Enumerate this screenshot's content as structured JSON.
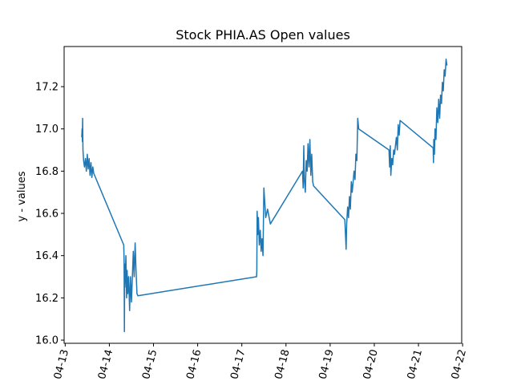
{
  "chart_data": {
    "type": "line",
    "title": "Stock PHIA.AS Open values",
    "xlabel": "",
    "ylabel": "y - values",
    "xlim": [
      "2021-04-12T23:25",
      "2021-04-21T23:30"
    ],
    "ylim": [
      15.985,
      17.39
    ],
    "grid": false,
    "legend": "none",
    "color": "#1f77b4",
    "x_ticks": [
      "04-13",
      "04-14",
      "04-15",
      "04-16",
      "04-17",
      "04-18",
      "04-19",
      "04-20",
      "04-21",
      "04-22"
    ],
    "y_ticks": [
      "16.0",
      "16.2",
      "16.4",
      "16.6",
      "16.8",
      "17.0",
      "17.2"
    ],
    "series": [
      {
        "values": [
          [
            "2021-04-13T09:00",
            16.96
          ],
          [
            "2021-04-13T09:10",
            17.0
          ],
          [
            "2021-04-13T09:20",
            16.94
          ],
          [
            "2021-04-13T09:30",
            17.05
          ],
          [
            "2021-04-13T09:40",
            16.9
          ],
          [
            "2021-04-13T10:00",
            16.85
          ],
          [
            "2021-04-13T10:30",
            16.82
          ],
          [
            "2021-04-13T11:00",
            16.86
          ],
          [
            "2021-04-13T11:30",
            16.8
          ],
          [
            "2021-04-13T12:00",
            16.88
          ],
          [
            "2021-04-13T12:30",
            16.81
          ],
          [
            "2021-04-13T13:00",
            16.86
          ],
          [
            "2021-04-13T13:30",
            16.78
          ],
          [
            "2021-04-13T14:00",
            16.84
          ],
          [
            "2021-04-13T14:30",
            16.77
          ],
          [
            "2021-04-13T15:00",
            16.82
          ],
          [
            "2021-04-13T15:30",
            16.79
          ],
          [
            "2021-04-14T07:50",
            16.45
          ],
          [
            "2021-04-14T08:00",
            16.38
          ],
          [
            "2021-04-14T08:10",
            16.04
          ],
          [
            "2021-04-14T08:20",
            16.36
          ],
          [
            "2021-04-14T08:30",
            16.25
          ],
          [
            "2021-04-14T09:00",
            16.4
          ],
          [
            "2021-04-14T09:20",
            16.2
          ],
          [
            "2021-04-14T09:40",
            16.33
          ],
          [
            "2021-04-14T10:00",
            16.22
          ],
          [
            "2021-04-14T10:30",
            16.3
          ],
          [
            "2021-04-14T11:00",
            16.14
          ],
          [
            "2021-04-14T11:30",
            16.3
          ],
          [
            "2021-04-14T12:00",
            16.18
          ],
          [
            "2021-04-14T13:00",
            16.42
          ],
          [
            "2021-04-14T13:30",
            16.3
          ],
          [
            "2021-04-14T14:00",
            16.46
          ],
          [
            "2021-04-14T14:30",
            16.33
          ],
          [
            "2021-04-14T15:00",
            16.22
          ],
          [
            "2021-04-14T15:30",
            16.21
          ],
          [
            "2021-04-17T08:00",
            16.3
          ],
          [
            "2021-04-17T08:10",
            16.33
          ],
          [
            "2021-04-17T08:20",
            16.61
          ],
          [
            "2021-04-17T08:40",
            16.5
          ],
          [
            "2021-04-17T09:00",
            16.58
          ],
          [
            "2021-04-17T09:30",
            16.45
          ],
          [
            "2021-04-17T10:00",
            16.52
          ],
          [
            "2021-04-17T10:30",
            16.42
          ],
          [
            "2021-04-17T11:00",
            16.48
          ],
          [
            "2021-04-17T11:30",
            16.4
          ],
          [
            "2021-04-17T12:00",
            16.72
          ],
          [
            "2021-04-17T13:00",
            16.58
          ],
          [
            "2021-04-17T14:00",
            16.62
          ],
          [
            "2021-04-17T15:30",
            16.55
          ],
          [
            "2021-04-18T09:00",
            16.8
          ],
          [
            "2021-04-18T09:20",
            16.72
          ],
          [
            "2021-04-18T09:40",
            16.92
          ],
          [
            "2021-04-18T10:00",
            16.76
          ],
          [
            "2021-04-18T10:30",
            16.7
          ],
          [
            "2021-04-18T11:00",
            16.85
          ],
          [
            "2021-04-18T11:30",
            16.8
          ],
          [
            "2021-04-18T12:00",
            16.93
          ],
          [
            "2021-04-18T12:30",
            16.82
          ],
          [
            "2021-04-18T13:00",
            16.95
          ],
          [
            "2021-04-18T13:30",
            16.78
          ],
          [
            "2021-04-18T14:00",
            16.88
          ],
          [
            "2021-04-18T14:30",
            16.75
          ],
          [
            "2021-04-18T15:00",
            16.73
          ],
          [
            "2021-04-19T08:00",
            16.57
          ],
          [
            "2021-04-19T08:20",
            16.5
          ],
          [
            "2021-04-19T08:40",
            16.43
          ],
          [
            "2021-04-19T09:00",
            16.55
          ],
          [
            "2021-04-19T09:30",
            16.63
          ],
          [
            "2021-04-19T10:00",
            16.58
          ],
          [
            "2021-04-19T10:30",
            16.68
          ],
          [
            "2021-04-19T11:00",
            16.62
          ],
          [
            "2021-04-19T11:30",
            16.75
          ],
          [
            "2021-04-19T12:00",
            16.7
          ],
          [
            "2021-04-19T13:00",
            16.8
          ],
          [
            "2021-04-19T13:30",
            16.76
          ],
          [
            "2021-04-19T14:00",
            16.88
          ],
          [
            "2021-04-19T14:30",
            16.85
          ],
          [
            "2021-04-19T15:00",
            17.05
          ],
          [
            "2021-04-19T15:30",
            17.0
          ],
          [
            "2021-04-20T08:00",
            16.9
          ],
          [
            "2021-04-20T08:20",
            16.82
          ],
          [
            "2021-04-20T08:40",
            16.92
          ],
          [
            "2021-04-20T09:00",
            16.78
          ],
          [
            "2021-04-20T09:30",
            16.86
          ],
          [
            "2021-04-20T10:00",
            16.83
          ],
          [
            "2021-04-20T10:30",
            16.9
          ],
          [
            "2021-04-20T11:00",
            16.88
          ],
          [
            "2021-04-20T12:00",
            16.96
          ],
          [
            "2021-04-20T12:30",
            16.9
          ],
          [
            "2021-04-20T13:00",
            17.02
          ],
          [
            "2021-04-20T13:30",
            16.97
          ],
          [
            "2021-04-20T14:00",
            17.04
          ],
          [
            "2021-04-21T08:00",
            16.91
          ],
          [
            "2021-04-21T08:10",
            16.84
          ],
          [
            "2021-04-21T08:20",
            16.95
          ],
          [
            "2021-04-21T08:40",
            16.88
          ],
          [
            "2021-04-21T09:00",
            17.0
          ],
          [
            "2021-04-21T09:30",
            16.95
          ],
          [
            "2021-04-21T10:00",
            17.1
          ],
          [
            "2021-04-21T10:30",
            17.03
          ],
          [
            "2021-04-21T11:00",
            17.14
          ],
          [
            "2021-04-21T11:30",
            17.05
          ],
          [
            "2021-04-21T12:00",
            17.16
          ],
          [
            "2021-04-21T12:30",
            17.12
          ],
          [
            "2021-04-21T13:00",
            17.22
          ],
          [
            "2021-04-21T13:30",
            17.18
          ],
          [
            "2021-04-21T14:00",
            17.28
          ],
          [
            "2021-04-21T14:30",
            17.25
          ],
          [
            "2021-04-21T15:00",
            17.33
          ],
          [
            "2021-04-21T15:30",
            17.3
          ]
        ]
      }
    ]
  }
}
